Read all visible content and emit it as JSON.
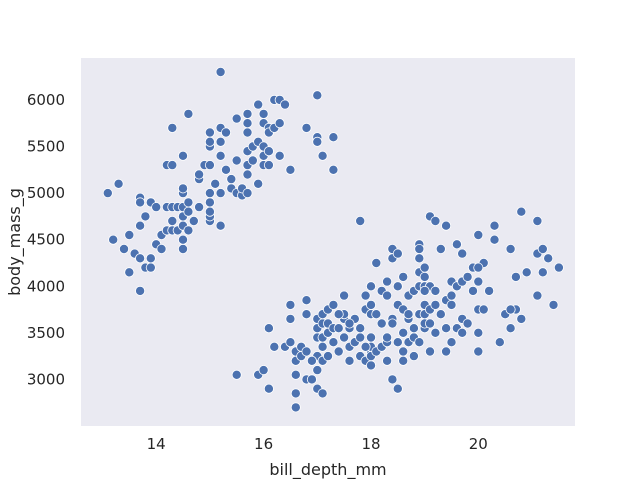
{
  "chart_data": {
    "type": "scatter",
    "title": "",
    "xlabel": "bill_depth_mm",
    "ylabel": "body_mass_g",
    "xlim": [
      12.6,
      21.8
    ],
    "ylim": [
      2500,
      6450
    ],
    "xticks": [
      14,
      16,
      18,
      20
    ],
    "yticks": [
      3000,
      3500,
      4000,
      4500,
      5000,
      5500,
      6000
    ],
    "grid": false,
    "background_color": "#eaeaf2",
    "marker_color": "#4c72b0",
    "marker_edge_color": "#ffffff",
    "series": [
      {
        "points": [
          [
            13.1,
            5000
          ],
          [
            13.3,
            5100
          ],
          [
            13.2,
            4500
          ],
          [
            13.4,
            4400
          ],
          [
            13.5,
            4550
          ],
          [
            13.5,
            4150
          ],
          [
            13.6,
            4350
          ],
          [
            13.7,
            4300
          ],
          [
            13.7,
            3950
          ],
          [
            13.7,
            4650
          ],
          [
            13.7,
            4950
          ],
          [
            13.7,
            4900
          ],
          [
            13.8,
            4200
          ],
          [
            13.8,
            4750
          ],
          [
            13.9,
            4300
          ],
          [
            13.9,
            4200
          ],
          [
            13.9,
            4900
          ],
          [
            14.0,
            4450
          ],
          [
            14.0,
            4850
          ],
          [
            14.1,
            4400
          ],
          [
            14.1,
            4550
          ],
          [
            14.2,
            4600
          ],
          [
            14.2,
            4850
          ],
          [
            14.2,
            5300
          ],
          [
            14.3,
            5300
          ],
          [
            14.3,
            4850
          ],
          [
            14.3,
            4600
          ],
          [
            14.3,
            4700
          ],
          [
            14.3,
            5700
          ],
          [
            14.4,
            4850
          ],
          [
            14.4,
            4600
          ],
          [
            14.5,
            4400
          ],
          [
            14.5,
            4650
          ],
          [
            14.5,
            4750
          ],
          [
            14.5,
            4850
          ],
          [
            14.5,
            5000
          ],
          [
            14.5,
            5050
          ],
          [
            14.5,
            5400
          ],
          [
            14.5,
            4500
          ],
          [
            14.6,
            4600
          ],
          [
            14.6,
            4800
          ],
          [
            14.6,
            4900
          ],
          [
            14.6,
            5850
          ],
          [
            14.7,
            4700
          ],
          [
            14.8,
            4850
          ],
          [
            14.8,
            5150
          ],
          [
            14.8,
            5200
          ],
          [
            14.9,
            5300
          ],
          [
            15.0,
            4700
          ],
          [
            15.0,
            4750
          ],
          [
            15.0,
            4800
          ],
          [
            15.0,
            4900
          ],
          [
            15.0,
            5000
          ],
          [
            15.0,
            5300
          ],
          [
            15.0,
            5500
          ],
          [
            15.0,
            5550
          ],
          [
            15.0,
            5650
          ],
          [
            15.1,
            5100
          ],
          [
            15.2,
            4650
          ],
          [
            15.2,
            5000
          ],
          [
            15.2,
            5400
          ],
          [
            15.2,
            5550
          ],
          [
            15.2,
            5700
          ],
          [
            15.2,
            6300
          ],
          [
            15.3,
            5250
          ],
          [
            15.3,
            5650
          ],
          [
            15.4,
            5050
          ],
          [
            15.4,
            5150
          ],
          [
            15.5,
            5000
          ],
          [
            15.5,
            5350
          ],
          [
            15.5,
            5800
          ],
          [
            15.6,
            4975
          ],
          [
            15.6,
            5050
          ],
          [
            15.7,
            5200
          ],
          [
            15.7,
            5000
          ],
          [
            15.7,
            5450
          ],
          [
            15.7,
            5650
          ],
          [
            15.7,
            5750
          ],
          [
            15.7,
            5850
          ],
          [
            15.7,
            5300
          ],
          [
            15.8,
            5500
          ],
          [
            15.8,
            5350
          ],
          [
            15.9,
            5100
          ],
          [
            15.9,
            5550
          ],
          [
            15.9,
            5950
          ],
          [
            16.0,
            5300
          ],
          [
            16.0,
            5400
          ],
          [
            16.0,
            5500
          ],
          [
            16.0,
            5750
          ],
          [
            16.0,
            5850
          ],
          [
            16.1,
            5700
          ],
          [
            16.1,
            5650
          ],
          [
            16.1,
            5450
          ],
          [
            16.1,
            5300
          ],
          [
            16.2,
            6000
          ],
          [
            16.2,
            5700
          ],
          [
            16.3,
            5400
          ],
          [
            16.3,
            6000
          ],
          [
            16.3,
            5750
          ],
          [
            16.4,
            5950
          ],
          [
            16.5,
            5250
          ],
          [
            16.8,
            5700
          ],
          [
            17.0,
            5600
          ],
          [
            17.0,
            5550
          ],
          [
            17.0,
            6050
          ],
          [
            17.1,
            5400
          ],
          [
            17.3,
            5600
          ],
          [
            17.3,
            5250
          ],
          [
            15.5,
            3050
          ],
          [
            15.9,
            3050
          ],
          [
            16.0,
            3100
          ],
          [
            16.1,
            3550
          ],
          [
            16.1,
            2900
          ],
          [
            16.2,
            3350
          ],
          [
            16.4,
            3350
          ],
          [
            16.5,
            3400
          ],
          [
            16.5,
            3800
          ],
          [
            16.5,
            3650
          ],
          [
            16.6,
            2700
          ],
          [
            16.6,
            2850
          ],
          [
            16.6,
            3050
          ],
          [
            16.6,
            3200
          ],
          [
            16.6,
            3300
          ],
          [
            16.7,
            3350
          ],
          [
            16.7,
            3250
          ],
          [
            16.8,
            3000
          ],
          [
            16.8,
            3300
          ],
          [
            16.8,
            3700
          ],
          [
            16.8,
            3850
          ],
          [
            16.9,
            3000
          ],
          [
            17.0,
            3450
          ],
          [
            17.0,
            3550
          ],
          [
            17.0,
            2900
          ],
          [
            17.0,
            3100
          ],
          [
            17.0,
            3250
          ],
          [
            17.0,
            3650
          ],
          [
            17.1,
            3600
          ],
          [
            17.1,
            3350
          ],
          [
            17.1,
            2850
          ],
          [
            17.1,
            3200
          ],
          [
            17.1,
            3450
          ],
          [
            17.1,
            3700
          ],
          [
            17.2,
            3600
          ],
          [
            17.2,
            3750
          ],
          [
            17.2,
            3500
          ],
          [
            17.3,
            3550
          ],
          [
            17.3,
            3400
          ],
          [
            17.3,
            3800
          ],
          [
            17.4,
            3300
          ],
          [
            17.4,
            3550
          ],
          [
            17.5,
            3650
          ],
          [
            17.5,
            3450
          ],
          [
            17.5,
            3700
          ],
          [
            17.5,
            3900
          ],
          [
            17.6,
            3350
          ],
          [
            17.6,
            3200
          ],
          [
            17.6,
            3550
          ],
          [
            17.7,
            3650
          ],
          [
            17.7,
            3400
          ],
          [
            17.8,
            4700
          ],
          [
            17.8,
            3450
          ],
          [
            17.8,
            3250
          ],
          [
            17.8,
            3550
          ],
          [
            17.9,
            3200
          ],
          [
            17.9,
            3750
          ],
          [
            17.9,
            3900
          ],
          [
            18.0,
            3150
          ],
          [
            18.0,
            3300
          ],
          [
            18.0,
            3350
          ],
          [
            18.0,
            3450
          ],
          [
            18.0,
            3700
          ],
          [
            18.0,
            4000
          ],
          [
            18.0,
            3250
          ],
          [
            18.0,
            3800
          ],
          [
            18.1,
            3300
          ],
          [
            18.1,
            3700
          ],
          [
            18.1,
            4250
          ],
          [
            18.2,
            3350
          ],
          [
            18.2,
            3600
          ],
          [
            18.2,
            3950
          ],
          [
            18.3,
            3200
          ],
          [
            18.3,
            3400
          ],
          [
            18.3,
            3450
          ],
          [
            18.3,
            3900
          ],
          [
            18.3,
            4050
          ],
          [
            18.4,
            4400
          ],
          [
            18.4,
            3650
          ],
          [
            18.4,
            4300
          ],
          [
            18.5,
            3400
          ],
          [
            18.5,
            3800
          ],
          [
            18.5,
            4000
          ],
          [
            18.5,
            4350
          ],
          [
            18.6,
            3300
          ],
          [
            18.6,
            3500
          ],
          [
            18.6,
            3200
          ],
          [
            18.6,
            3750
          ],
          [
            18.7,
            3400
          ],
          [
            18.7,
            3650
          ],
          [
            18.7,
            3900
          ],
          [
            18.8,
            3450
          ],
          [
            18.8,
            3550
          ],
          [
            18.8,
            3950
          ],
          [
            18.9,
            3400
          ],
          [
            18.9,
            3700
          ],
          [
            18.9,
            4000
          ],
          [
            18.9,
            4450
          ],
          [
            18.9,
            4400
          ],
          [
            18.9,
            4300
          ],
          [
            18.9,
            4150
          ],
          [
            18.5,
            2900
          ],
          [
            19.0,
            3700
          ],
          [
            19.0,
            3800
          ],
          [
            19.0,
            3550
          ],
          [
            19.0,
            3600
          ],
          [
            19.0,
            4000
          ],
          [
            19.0,
            4100
          ],
          [
            19.0,
            4200
          ],
          [
            19.1,
            3300
          ],
          [
            19.1,
            3600
          ],
          [
            19.1,
            3750
          ],
          [
            19.1,
            4000
          ],
          [
            19.1,
            4750
          ],
          [
            19.2,
            3500
          ],
          [
            19.2,
            3800
          ],
          [
            19.3,
            3700
          ],
          [
            19.3,
            4400
          ],
          [
            19.4,
            3300
          ],
          [
            19.4,
            3550
          ],
          [
            19.4,
            3850
          ],
          [
            19.4,
            4650
          ],
          [
            19.5,
            3800
          ],
          [
            19.5,
            3900
          ],
          [
            19.5,
            4050
          ],
          [
            19.6,
            3550
          ],
          [
            19.6,
            4000
          ],
          [
            19.6,
            4450
          ],
          [
            19.7,
            3650
          ],
          [
            19.7,
            4050
          ],
          [
            19.8,
            3600
          ],
          [
            19.8,
            4100
          ],
          [
            19.9,
            3950
          ],
          [
            19.9,
            4200
          ],
          [
            20.0,
            3500
          ],
          [
            20.0,
            3750
          ],
          [
            20.0,
            4050
          ],
          [
            20.0,
            3300
          ],
          [
            20.1,
            3750
          ],
          [
            20.1,
            4250
          ],
          [
            20.2,
            3950
          ],
          [
            20.3,
            4500
          ],
          [
            20.5,
            3700
          ],
          [
            20.6,
            3550
          ],
          [
            20.6,
            4400
          ],
          [
            20.7,
            3750
          ],
          [
            20.7,
            4100
          ],
          [
            20.8,
            3650
          ],
          [
            21.1,
            4350
          ],
          [
            21.1,
            3900
          ],
          [
            21.2,
            4150
          ],
          [
            21.5,
            4200
          ],
          [
            19.2,
            4700
          ],
          [
            19.7,
            4350
          ],
          [
            20.0,
            4550
          ],
          [
            20.0,
            4200
          ],
          [
            20.3,
            4650
          ],
          [
            20.8,
            4800
          ],
          [
            21.1,
            4700
          ],
          [
            21.2,
            4400
          ],
          [
            21.3,
            4300
          ],
          [
            21.4,
            3800
          ],
          [
            20.9,
            4150
          ],
          [
            20.4,
            3400
          ],
          [
            19.7,
            3500
          ],
          [
            18.4,
            3000
          ],
          [
            19.2,
            3950
          ],
          [
            18.8,
            3250
          ],
          [
            18.4,
            3600
          ],
          [
            17.9,
            3350
          ],
          [
            17.6,
            3600
          ],
          [
            17.2,
            3250
          ],
          [
            19.5,
            3400
          ],
          [
            20.6,
            3750
          ],
          [
            19.0,
            3950
          ],
          [
            18.7,
            3700
          ],
          [
            16.9,
            3200
          ],
          [
            17.4,
            3700
          ],
          [
            18.6,
            4100
          ]
        ]
      }
    ]
  }
}
